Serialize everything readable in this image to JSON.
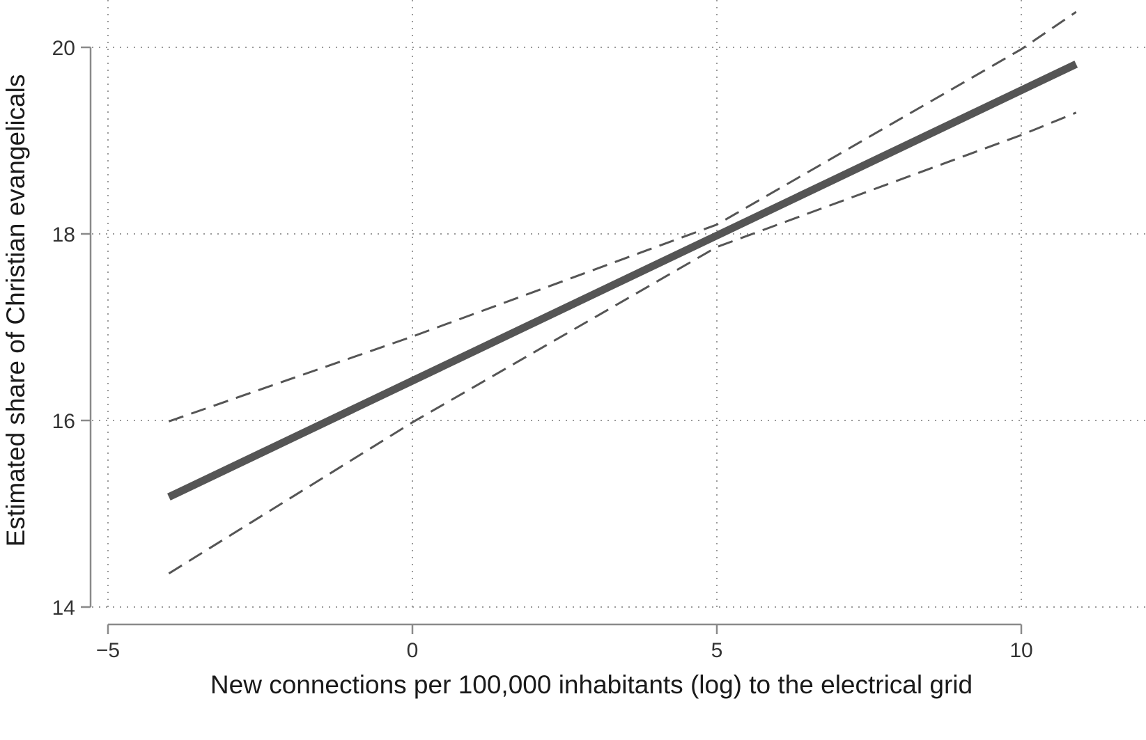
{
  "chart_data": {
    "type": "line",
    "title": "",
    "xlabel": "New connections per 100,000 inhabitants (log) to the electrical grid",
    "ylabel": "Estimated share of Christian evangelicals",
    "xlim": [
      -5,
      11.5
    ],
    "ylim": [
      14,
      20.5
    ],
    "xticks": [
      -5,
      0,
      5,
      10
    ],
    "xtick_labels": [
      "−5",
      "0",
      "5",
      "10"
    ],
    "yticks": [
      14,
      16,
      18,
      20
    ],
    "ytick_labels": [
      "14",
      "16",
      "18",
      "20"
    ],
    "grid": true,
    "legend": "none",
    "series": [
      {
        "role": "estimate",
        "style": "solid-thick",
        "color": "#555555",
        "x": [
          -4,
          10.9
        ],
        "y": [
          15.18,
          19.82
        ]
      },
      {
        "role": "upper-ci",
        "style": "dashed",
        "color": "#555555",
        "x": [
          -4,
          0,
          5,
          10,
          10.9
        ],
        "y": [
          15.99,
          16.9,
          18.1,
          19.98,
          20.38
        ]
      },
      {
        "role": "lower-ci",
        "style": "dashed",
        "color": "#555555",
        "x": [
          -4,
          0,
          5,
          10,
          10.9
        ],
        "y": [
          14.36,
          15.98,
          17.86,
          19.06,
          19.3
        ]
      }
    ]
  }
}
